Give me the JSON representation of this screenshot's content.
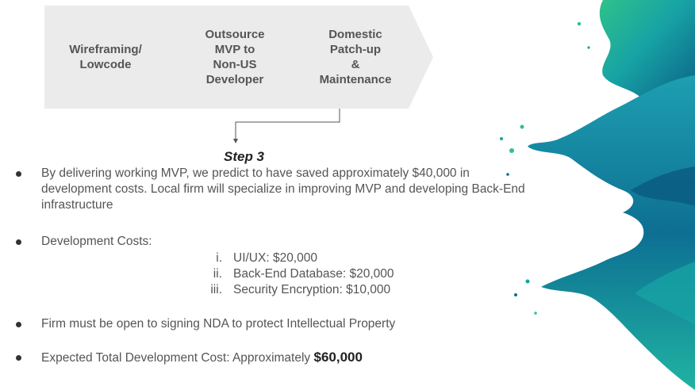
{
  "process": {
    "steps": [
      {
        "label": "Wireframing/\nLowcode"
      },
      {
        "label": "Outsource\nMVP to\nNon-US\nDeveloper"
      },
      {
        "label": "Domestic\nPatch-up\n&\nMaintenance"
      }
    ]
  },
  "step_label": "Step 3",
  "bullets": {
    "b1": "By delivering working MVP, we predict to have saved approximately $40,000 in development costs.  Local firm will specialize in improving MVP and developing Back-End infrastructure",
    "b2": "Development Costs:",
    "costs": [
      {
        "num": "i.",
        "text": "UI/UX:  $20,000"
      },
      {
        "num": "ii.",
        "text": "Back-End Database: $20,000"
      },
      {
        "num": "iii.",
        "text": "Security Encryption: $10,000"
      }
    ],
    "b3": "Firm must be open to signing NDA to protect Intellectual Property",
    "b4_prefix": "Expected Total Development Cost:  Approximately ",
    "b4_amount": "$60,000"
  },
  "colors": {
    "chevron": "#ebebeb",
    "paint_dark": "#0b6b8a",
    "paint_teal": "#17a3a5",
    "paint_green": "#2fc18a"
  }
}
